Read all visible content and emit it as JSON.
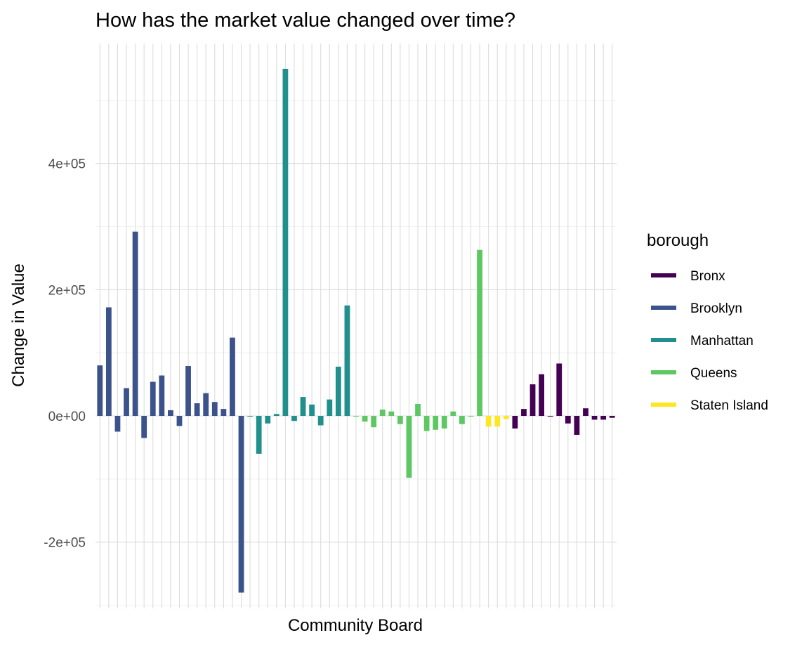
{
  "chart_data": {
    "type": "bar",
    "title": "How has the market value changed over time?",
    "xlabel": "Community Board",
    "ylabel": "Change in Value",
    "ylim": [
      -305000,
      590000
    ],
    "yticks": [
      -200000,
      0,
      200000,
      400000
    ],
    "ytick_labels": [
      "-2e+05",
      "0e+00",
      "2e+05",
      "4e+05"
    ],
    "grid": true,
    "x_tick_labels_shown": false,
    "legend": {
      "title": "borough",
      "placement": "right",
      "entries": [
        {
          "name": "Bronx",
          "color": "#440154"
        },
        {
          "name": "Brooklyn",
          "color": "#3b528b"
        },
        {
          "name": "Manhattan",
          "color": "#21908c"
        },
        {
          "name": "Queens",
          "color": "#5dc863"
        },
        {
          "name": "Staten Island",
          "color": "#fde725"
        }
      ]
    },
    "bars": [
      {
        "borough": "Brooklyn",
        "value": 80000
      },
      {
        "borough": "Brooklyn",
        "value": 172000
      },
      {
        "borough": "Brooklyn",
        "value": -25000
      },
      {
        "borough": "Brooklyn",
        "value": 44000
      },
      {
        "borough": "Brooklyn",
        "value": 292000
      },
      {
        "borough": "Brooklyn",
        "value": -35000
      },
      {
        "borough": "Brooklyn",
        "value": 54000
      },
      {
        "borough": "Brooklyn",
        "value": 64000
      },
      {
        "borough": "Brooklyn",
        "value": 9000
      },
      {
        "borough": "Brooklyn",
        "value": -16000
      },
      {
        "borough": "Brooklyn",
        "value": 79000
      },
      {
        "borough": "Brooklyn",
        "value": 20000
      },
      {
        "borough": "Brooklyn",
        "value": 36000
      },
      {
        "borough": "Brooklyn",
        "value": 22000
      },
      {
        "borough": "Brooklyn",
        "value": 11000
      },
      {
        "borough": "Brooklyn",
        "value": 124000
      },
      {
        "borough": "Brooklyn",
        "value": -280000
      },
      {
        "borough": "Manhattan",
        "value": -1000
      },
      {
        "borough": "Manhattan",
        "value": -60000
      },
      {
        "borough": "Manhattan",
        "value": -12000
      },
      {
        "borough": "Manhattan",
        "value": 3000
      },
      {
        "borough": "Manhattan",
        "value": 550000
      },
      {
        "borough": "Manhattan",
        "value": -8000
      },
      {
        "borough": "Manhattan",
        "value": 30000
      },
      {
        "borough": "Manhattan",
        "value": 18000
      },
      {
        "borough": "Manhattan",
        "value": -15000
      },
      {
        "borough": "Manhattan",
        "value": 26000
      },
      {
        "borough": "Manhattan",
        "value": 78000
      },
      {
        "borough": "Manhattan",
        "value": 175000
      },
      {
        "borough": "Queens",
        "value": 0
      },
      {
        "borough": "Queens",
        "value": -9000
      },
      {
        "borough": "Queens",
        "value": -18000
      },
      {
        "borough": "Queens",
        "value": 10000
      },
      {
        "borough": "Queens",
        "value": 7000
      },
      {
        "borough": "Queens",
        "value": -13000
      },
      {
        "borough": "Queens",
        "value": -98000
      },
      {
        "borough": "Queens",
        "value": 19000
      },
      {
        "borough": "Queens",
        "value": -24000
      },
      {
        "borough": "Queens",
        "value": -22000
      },
      {
        "borough": "Queens",
        "value": -20000
      },
      {
        "borough": "Queens",
        "value": 7000
      },
      {
        "borough": "Queens",
        "value": -13000
      },
      {
        "borough": "Queens",
        "value": 0
      },
      {
        "borough": "Queens",
        "value": 263000
      },
      {
        "borough": "Staten Island",
        "value": -17000
      },
      {
        "borough": "Staten Island",
        "value": -17000
      },
      {
        "borough": "Staten Island",
        "value": -5000
      },
      {
        "borough": "Bronx",
        "value": -20000
      },
      {
        "borough": "Bronx",
        "value": 11000
      },
      {
        "borough": "Bronx",
        "value": 50000
      },
      {
        "borough": "Bronx",
        "value": 66000
      },
      {
        "borough": "Bronx",
        "value": 0
      },
      {
        "borough": "Bronx",
        "value": 83000
      },
      {
        "borough": "Bronx",
        "value": -12000
      },
      {
        "borough": "Bronx",
        "value": -30000
      },
      {
        "borough": "Bronx",
        "value": 12000
      },
      {
        "borough": "Bronx",
        "value": -6000
      },
      {
        "borough": "Bronx",
        "value": -6000
      },
      {
        "borough": "Bronx",
        "value": -3000
      }
    ]
  }
}
